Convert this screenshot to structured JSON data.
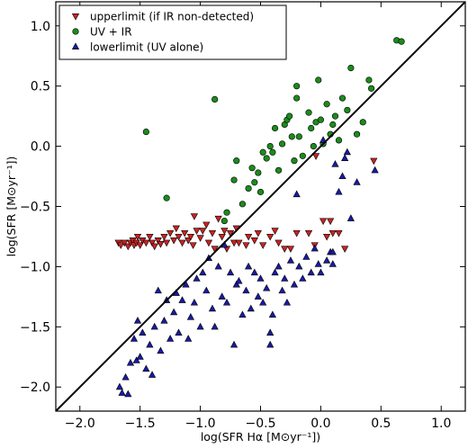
{
  "chart_data": {
    "type": "scatter",
    "xlabel": "log(SFR Hα [M⊙yr⁻¹])",
    "ylabel": "log(SFR [M⊙yr⁻¹])",
    "xlim": [
      -2.2,
      1.2
    ],
    "ylim": [
      -2.2,
      1.2
    ],
    "xticks": [
      -2.0,
      -1.5,
      -1.0,
      -0.5,
      0.0,
      0.5,
      1.0
    ],
    "yticks": [
      -2.0,
      -1.5,
      -1.0,
      -0.5,
      0.0,
      0.5,
      1.0
    ],
    "xtick_labels": [
      "−2.0",
      "−1.5",
      "−1.0",
      "−0.5",
      "0.0",
      "0.5",
      "1.0"
    ],
    "ytick_labels": [
      "−2.0",
      "−1.5",
      "−1.0",
      "−0.5",
      "0.0",
      "0.5",
      "1.0"
    ],
    "grid": false,
    "legend_position": "top-left",
    "reference_line": {
      "x": [
        -2.2,
        1.2
      ],
      "y": [
        -2.2,
        1.2
      ],
      "color": "#000000"
    },
    "series": [
      {
        "name": "upperlimit (if IR non-detected)",
        "marker": "triangle-down",
        "color": "#cc2222",
        "points": [
          [
            -1.68,
            -0.8
          ],
          [
            -1.66,
            -0.82
          ],
          [
            -1.63,
            -0.8
          ],
          [
            -1.6,
            -0.83
          ],
          [
            -1.58,
            -0.8
          ],
          [
            -1.56,
            -0.78
          ],
          [
            -1.55,
            -0.82
          ],
          [
            -1.53,
            -0.8
          ],
          [
            -1.52,
            -0.75
          ],
          [
            -1.5,
            -0.82
          ],
          [
            -1.48,
            -0.78
          ],
          [
            -1.45,
            -0.8
          ],
          [
            -1.42,
            -0.75
          ],
          [
            -1.4,
            -0.8
          ],
          [
            -1.38,
            -0.83
          ],
          [
            -1.35,
            -0.78
          ],
          [
            -1.33,
            -0.81
          ],
          [
            -1.3,
            -0.75
          ],
          [
            -1.28,
            -0.8
          ],
          [
            -1.25,
            -0.72
          ],
          [
            -1.22,
            -0.78
          ],
          [
            -1.2,
            -0.68
          ],
          [
            -1.18,
            -0.75
          ],
          [
            -1.15,
            -0.8
          ],
          [
            -1.13,
            -0.72
          ],
          [
            -1.1,
            -0.78
          ],
          [
            -1.08,
            -0.75
          ],
          [
            -1.06,
            -0.82
          ],
          [
            -1.05,
            -0.58
          ],
          [
            -1.03,
            -0.7
          ],
          [
            -1.0,
            -0.76
          ],
          [
            -0.98,
            -0.7
          ],
          [
            -0.95,
            -0.65
          ],
          [
            -0.93,
            -0.8
          ],
          [
            -0.9,
            -0.72
          ],
          [
            -0.88,
            -0.85
          ],
          [
            -0.85,
            -0.6
          ],
          [
            -0.82,
            -0.75
          ],
          [
            -0.8,
            -0.7
          ],
          [
            -0.78,
            -0.85
          ],
          [
            -0.75,
            -0.72
          ],
          [
            -0.72,
            -0.8
          ],
          [
            -0.7,
            -0.68
          ],
          [
            -0.68,
            -0.8
          ],
          [
            -0.62,
            -0.82
          ],
          [
            -0.6,
            -0.75
          ],
          [
            -0.55,
            -0.78
          ],
          [
            -0.52,
            -0.72
          ],
          [
            -0.48,
            -0.82
          ],
          [
            -0.42,
            -0.75
          ],
          [
            -0.38,
            -0.7
          ],
          [
            -0.35,
            -0.8
          ],
          [
            -0.3,
            -0.85
          ],
          [
            -0.25,
            -0.85
          ],
          [
            -0.2,
            -0.72
          ],
          [
            -0.1,
            -0.72
          ],
          [
            -0.05,
            -0.82
          ],
          [
            0.05,
            -0.75
          ],
          [
            0.08,
            -0.62
          ],
          [
            0.02,
            -0.62
          ],
          [
            0.1,
            -0.72
          ],
          [
            0.15,
            -0.72
          ],
          [
            -0.04,
            -0.08
          ],
          [
            0.2,
            -0.85
          ],
          [
            0.44,
            -0.12
          ]
        ]
      },
      {
        "name": "UV + IR",
        "marker": "circle",
        "color": "#1a8c1a",
        "points": [
          [
            -1.45,
            0.12
          ],
          [
            -0.88,
            0.39
          ],
          [
            -1.28,
            -0.43
          ],
          [
            -0.78,
            -0.55
          ],
          [
            -0.72,
            -0.28
          ],
          [
            -0.7,
            -0.12
          ],
          [
            -0.65,
            -0.48
          ],
          [
            -0.6,
            -0.35
          ],
          [
            -0.57,
            -0.18
          ],
          [
            -0.55,
            -0.3
          ],
          [
            -0.52,
            -0.22
          ],
          [
            -0.5,
            -0.38
          ],
          [
            -0.48,
            -0.05
          ],
          [
            -0.45,
            -0.1
          ],
          [
            -0.42,
            0.0
          ],
          [
            -0.4,
            -0.05
          ],
          [
            -0.38,
            0.15
          ],
          [
            -0.35,
            -0.2
          ],
          [
            -0.32,
            0.02
          ],
          [
            -0.3,
            0.18
          ],
          [
            -0.28,
            0.22
          ],
          [
            -0.26,
            0.25
          ],
          [
            -0.24,
            0.08
          ],
          [
            -0.22,
            -0.12
          ],
          [
            -0.2,
            0.4
          ],
          [
            -0.18,
            0.08
          ],
          [
            -0.15,
            -0.08
          ],
          [
            -0.1,
            0.28
          ],
          [
            -0.08,
            0.15
          ],
          [
            -0.06,
            0.0
          ],
          [
            -0.04,
            0.2
          ],
          [
            -0.02,
            0.55
          ],
          [
            0.0,
            0.22
          ],
          [
            0.02,
            0.02
          ],
          [
            0.05,
            0.35
          ],
          [
            0.08,
            0.1
          ],
          [
            0.1,
            0.18
          ],
          [
            0.12,
            0.25
          ],
          [
            0.15,
            0.05
          ],
          [
            0.18,
            0.4
          ],
          [
            0.22,
            0.3
          ],
          [
            0.25,
            0.65
          ],
          [
            0.3,
            0.1
          ],
          [
            0.35,
            0.2
          ],
          [
            0.4,
            0.55
          ],
          [
            0.42,
            0.48
          ],
          [
            0.63,
            0.88
          ],
          [
            0.67,
            0.87
          ],
          [
            -0.8,
            -0.62
          ],
          [
            -0.2,
            0.5
          ]
        ]
      },
      {
        "name": "lowerlimit (UV alone)",
        "marker": "triangle-up",
        "color": "#1a1aa6",
        "points": [
          [
            -1.67,
            -2.0
          ],
          [
            -1.65,
            -2.05
          ],
          [
            -1.62,
            -1.92
          ],
          [
            -1.6,
            -2.06
          ],
          [
            -1.58,
            -1.8
          ],
          [
            -1.55,
            -1.6
          ],
          [
            -1.53,
            -1.78
          ],
          [
            -1.52,
            -1.45
          ],
          [
            -1.5,
            -1.75
          ],
          [
            -1.48,
            -1.55
          ],
          [
            -1.45,
            -1.85
          ],
          [
            -1.42,
            -1.65
          ],
          [
            -1.4,
            -1.9
          ],
          [
            -1.38,
            -1.5
          ],
          [
            -1.35,
            -1.2
          ],
          [
            -1.33,
            -1.7
          ],
          [
            -1.3,
            -1.45
          ],
          [
            -1.28,
            -1.28
          ],
          [
            -1.25,
            -1.6
          ],
          [
            -1.22,
            -1.38
          ],
          [
            -1.2,
            -1.22
          ],
          [
            -1.18,
            -1.55
          ],
          [
            -1.15,
            -1.28
          ],
          [
            -1.12,
            -1.15
          ],
          [
            -1.1,
            -1.6
          ],
          [
            -1.08,
            -1.42
          ],
          [
            -1.05,
            -1.3
          ],
          [
            -1.03,
            -1.1
          ],
          [
            -1.0,
            -1.5
          ],
          [
            -0.98,
            -1.05
          ],
          [
            -0.95,
            -1.2
          ],
          [
            -0.93,
            -0.93
          ],
          [
            -0.9,
            -1.35
          ],
          [
            -0.88,
            -1.5
          ],
          [
            -0.85,
            -1.0
          ],
          [
            -0.82,
            -1.25
          ],
          [
            -0.8,
            -0.82
          ],
          [
            -0.78,
            -1.3
          ],
          [
            -0.75,
            -1.05
          ],
          [
            -0.72,
            -1.65
          ],
          [
            -0.7,
            -1.15
          ],
          [
            -0.68,
            -1.12
          ],
          [
            -0.65,
            -1.4
          ],
          [
            -0.62,
            -1.2
          ],
          [
            -0.6,
            -1.0
          ],
          [
            -0.58,
            -1.35
          ],
          [
            -0.55,
            -1.05
          ],
          [
            -0.52,
            -1.25
          ],
          [
            -0.5,
            -1.1
          ],
          [
            -0.48,
            -1.3
          ],
          [
            -0.45,
            -1.18
          ],
          [
            -0.42,
            -1.55
          ],
          [
            -0.4,
            -1.4
          ],
          [
            -0.38,
            -1.05
          ],
          [
            -0.35,
            -1.0
          ],
          [
            -0.32,
            -1.2
          ],
          [
            -0.3,
            -1.1
          ],
          [
            -0.28,
            -1.3
          ],
          [
            -0.25,
            -0.95
          ],
          [
            -0.22,
            -1.15
          ],
          [
            -0.18,
            -1.0
          ],
          [
            -0.15,
            -1.1
          ],
          [
            -0.12,
            -0.92
          ],
          [
            -0.08,
            -1.05
          ],
          [
            -0.05,
            -0.85
          ],
          [
            -0.02,
            -0.98
          ],
          [
            0.0,
            -1.05
          ],
          [
            0.02,
            0.05
          ],
          [
            0.05,
            -0.95
          ],
          [
            0.08,
            -0.88
          ],
          [
            0.1,
            -0.98
          ],
          [
            0.12,
            -0.15
          ],
          [
            0.15,
            -0.38
          ],
          [
            0.18,
            -0.25
          ],
          [
            0.2,
            -0.1
          ],
          [
            0.22,
            -0.05
          ],
          [
            0.25,
            -0.6
          ],
          [
            0.3,
            -0.3
          ],
          [
            0.45,
            -0.2
          ],
          [
            -0.42,
            -1.65
          ],
          [
            -0.2,
            -0.4
          ],
          [
            0.1,
            -0.88
          ]
        ]
      }
    ]
  }
}
